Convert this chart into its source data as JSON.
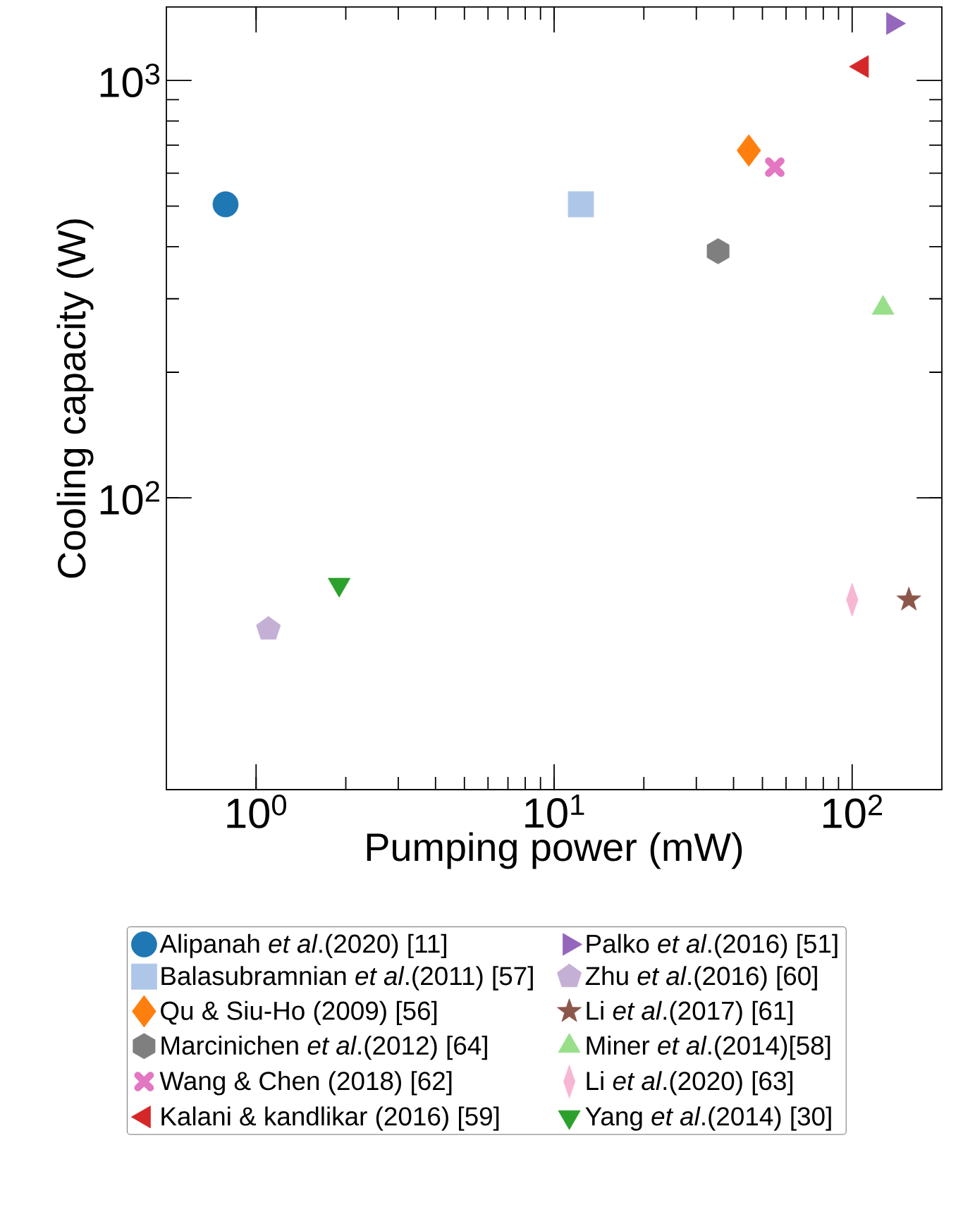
{
  "chart_data": {
    "type": "scatter",
    "xlabel": "Pumping power (mW)",
    "ylabel": "Cooling capacity (W)",
    "log": "xy",
    "xlim": [
      0.5,
      200
    ],
    "ylim": [
      20,
      1500
    ],
    "xticks": [
      {
        "value": 1,
        "label": "10$^{0}$"
      },
      {
        "value": 10,
        "label": "10$^{1}$"
      },
      {
        "value": 100,
        "label": "10$^{2}$"
      }
    ],
    "yticks": [
      {
        "value": 100,
        "label": "10$^{2}$"
      },
      {
        "value": 1000,
        "label": "10$^{3}$"
      }
    ],
    "grid": false,
    "legend": "bottom",
    "series": [
      {
        "name": "Alipanah *et al*.(2020) [11]",
        "color": "#1f77b4",
        "marker": "circle",
        "x": [
          0.79
        ],
        "values": [
          505
        ]
      },
      {
        "name": "Balasubramnian *et al*.(2011) [57]",
        "color": "#aec7e8",
        "marker": "square",
        "x": [
          12.3
        ],
        "values": [
          505
        ]
      },
      {
        "name": "Qu & Siu-Ho (2009) [56]",
        "color": "#ff7f0e",
        "marker": "diamond",
        "x": [
          45
        ],
        "values": [
          680
        ]
      },
      {
        "name": "Marcinichen *et al*.(2012) [64]",
        "color": "#7f7f7f",
        "x": [
          35.5
        ],
        "values": [
          390
        ]
      },
      {
        "name": "Wang & Chen (2018) [62]",
        "color": "#e377c2",
        "marker": "cross",
        "x": [
          55
        ],
        "values": [
          620
        ]
      },
      {
        "name": "Kalani & kandlikar (2016) [59]",
        "color": "#d62728",
        "marker": "triangle-left",
        "x": [
          108
        ],
        "values": [
          1080
        ]
      },
      {
        "name": "Palko *et al*.(2016) [51]",
        "color": "#9467bd",
        "marker": "triangle-right",
        "x": [
          137
        ],
        "values": [
          1370
        ]
      },
      {
        "name": "Zhu *et al*.(2016) [60]",
        "color": "#c5b0d5",
        "x": [
          1.1
        ],
        "values": [
          48.5
        ]
      },
      {
        "name": "Li *et al*.(2017) [61]",
        "color": "#8c564b",
        "marker": "star",
        "x": [
          155
        ],
        "values": [
          57
        ]
      },
      {
        "name": "Miner *et al*.(2014)[58]",
        "color": "#98df8a",
        "marker": "triangle",
        "x": [
          127
        ],
        "values": [
          285
        ]
      },
      {
        "name": "Li *et al*.(2020) [63]",
        "color": "#f7b6d2",
        "x": [
          100
        ],
        "values": [
          57
        ]
      },
      {
        "name": "Yang *et al*.(2014) [30]",
        "color": "#2ca02c",
        "marker": "triangle-down",
        "x": [
          1.9
        ],
        "values": [
          62
        ]
      }
    ]
  }
}
